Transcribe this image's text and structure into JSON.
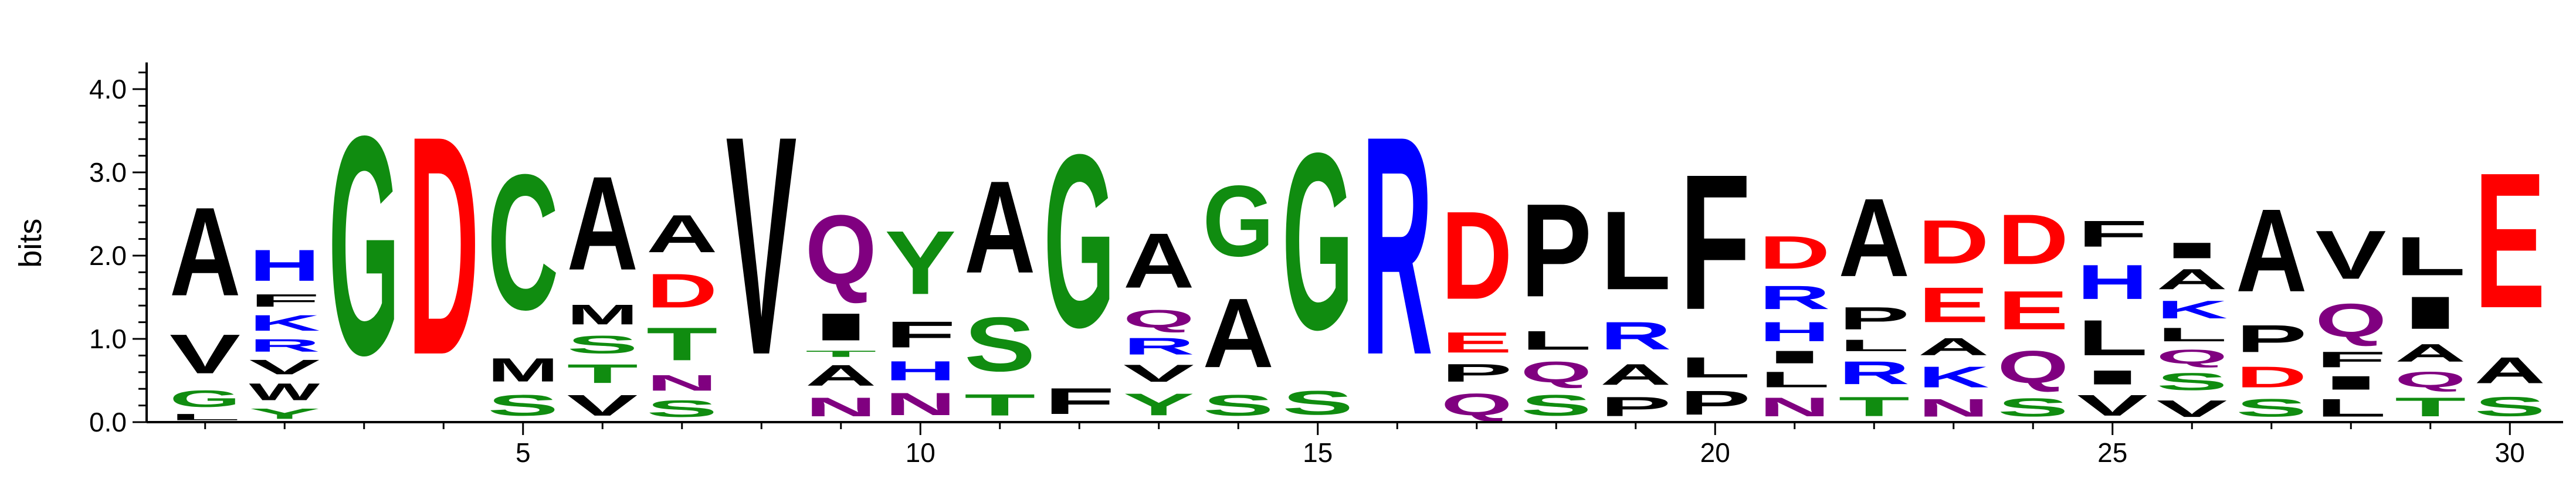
{
  "chart_data": {
    "type": "sequence-logo",
    "ylabel": "bits",
    "ylim": [
      0,
      4.32
    ],
    "xlim": [
      0.5,
      30.5
    ],
    "y_ticks": [
      0.0,
      1.0,
      2.0,
      3.0,
      4.0
    ],
    "y_tick_labels": [
      "0.0",
      "1.0",
      "2.0",
      "3.0",
      "4.0"
    ],
    "x_ticks": [
      5,
      10,
      15,
      20,
      25,
      30
    ],
    "x_tick_labels": [
      "5",
      "10",
      "15",
      "20",
      "25",
      "30"
    ],
    "colors": {
      "G": "#108c10",
      "S": "#108c10",
      "T": "#108c10",
      "Y": "#108c10",
      "C": "#108c10",
      "N": "#800080",
      "Q": "#800080",
      "K": "#0000ff",
      "R": "#0000ff",
      "H": "#0000ff",
      "D": "#ff0000",
      "E": "#ff0000",
      "A": "#000000",
      "V": "#000000",
      "L": "#000000",
      "I": "#000000",
      "P": "#000000",
      "W": "#000000",
      "F": "#000000",
      "M": "#000000"
    },
    "positions": [
      {
        "pos": 1,
        "stack": [
          [
            "L",
            0.12
          ],
          [
            "G",
            0.32
          ],
          [
            "V",
            0.75
          ],
          [
            "A",
            1.7
          ]
        ]
      },
      {
        "pos": 2,
        "stack": [
          [
            "Y",
            0.2
          ],
          [
            "W",
            0.32
          ],
          [
            "V",
            0.28
          ],
          [
            "R",
            0.24
          ],
          [
            "K",
            0.3
          ],
          [
            "F",
            0.24
          ],
          [
            "H",
            0.6
          ]
        ]
      },
      {
        "pos": 3,
        "stack": [
          [
            "G",
            4.2
          ]
        ]
      },
      {
        "pos": 4,
        "stack": [
          [
            "D",
            4.2
          ]
        ]
      },
      {
        "pos": 5,
        "stack": [
          [
            "S",
            0.4
          ],
          [
            "M",
            0.45
          ],
          [
            "C",
            2.6
          ]
        ]
      },
      {
        "pos": 6,
        "stack": [
          [
            "V",
            0.4
          ],
          [
            "T",
            0.36
          ],
          [
            "S",
            0.34
          ],
          [
            "M",
            0.38
          ],
          [
            "A",
            1.8
          ]
        ]
      },
      {
        "pos": 7,
        "stack": [
          [
            "S",
            0.32
          ],
          [
            "N",
            0.3
          ],
          [
            "T",
            0.63
          ],
          [
            "D",
            0.65
          ],
          [
            "A",
            0.72
          ]
        ]
      },
      {
        "pos": 8,
        "stack": [
          [
            "V",
            4.2
          ]
        ]
      },
      {
        "pos": 9,
        "stack": [
          [
            "N",
            0.36
          ],
          [
            "A",
            0.4
          ],
          [
            "T",
            0.12
          ],
          [
            "I",
            0.52
          ],
          [
            "Q",
            1.33
          ]
        ]
      },
      {
        "pos": 10,
        "stack": [
          [
            "N",
            0.43
          ],
          [
            "H",
            0.37
          ],
          [
            "F",
            0.5
          ],
          [
            "Y",
            1.22
          ]
        ]
      },
      {
        "pos": 11,
        "stack": [
          [
            "T",
            0.41
          ],
          [
            "S",
            1.04
          ],
          [
            "A",
            1.77
          ]
        ]
      },
      {
        "pos": 12,
        "stack": [
          [
            "F",
            0.5
          ],
          [
            "G",
            3.32
          ]
        ]
      },
      {
        "pos": 13,
        "stack": [
          [
            "Y",
            0.42
          ],
          [
            "V",
            0.33
          ],
          [
            "R",
            0.32
          ],
          [
            "Q",
            0.34
          ],
          [
            "A",
            1.05
          ]
        ]
      },
      {
        "pos": 14,
        "stack": [
          [
            "S",
            0.4
          ],
          [
            "A",
            1.33
          ],
          [
            "G",
            1.36
          ]
        ]
      },
      {
        "pos": 15,
        "stack": [
          [
            "S",
            0.46
          ],
          [
            "G",
            3.39
          ]
        ]
      },
      {
        "pos": 16,
        "stack": [
          [
            "R",
            4.2
          ]
        ]
      },
      {
        "pos": 17,
        "stack": [
          [
            "Q",
            0.42
          ],
          [
            "P",
            0.34
          ],
          [
            "E",
            0.39
          ],
          [
            "D",
            1.69
          ]
        ]
      },
      {
        "pos": 18,
        "stack": [
          [
            "S",
            0.4
          ],
          [
            "Q",
            0.4
          ],
          [
            "L",
            0.36
          ],
          [
            "P",
            1.79
          ]
        ]
      },
      {
        "pos": 19,
        "stack": [
          [
            "P",
            0.37
          ],
          [
            "A",
            0.4
          ],
          [
            "R",
            0.53
          ],
          [
            "L",
            1.51
          ]
        ]
      },
      {
        "pos": 20,
        "stack": [
          [
            "P",
            0.46
          ],
          [
            "L",
            0.39
          ],
          [
            "F",
            2.6
          ]
        ]
      },
      {
        "pos": 21,
        "stack": [
          [
            "N",
            0.36
          ],
          [
            "L",
            0.3
          ],
          [
            "I",
            0.24
          ],
          [
            "H",
            0.37
          ],
          [
            "R",
            0.45
          ],
          [
            "D",
            0.63
          ]
        ]
      },
      {
        "pos": 22,
        "stack": [
          [
            "T",
            0.37
          ],
          [
            "R",
            0.44
          ],
          [
            "L",
            0.22
          ],
          [
            "P",
            0.43
          ],
          [
            "A",
            1.5
          ]
        ]
      },
      {
        "pos": 23,
        "stack": [
          [
            "N",
            0.34
          ],
          [
            "K",
            0.4
          ],
          [
            "A",
            0.33
          ],
          [
            "E",
            0.67
          ],
          [
            "D",
            0.84
          ]
        ]
      },
      {
        "pos": 24,
        "stack": [
          [
            "S",
            0.35
          ],
          [
            "Q",
            0.62
          ],
          [
            "E",
            0.74
          ],
          [
            "D",
            0.96
          ]
        ]
      },
      {
        "pos": 25,
        "stack": [
          [
            "V",
            0.4
          ],
          [
            "I",
            0.27
          ],
          [
            "L",
            0.68
          ],
          [
            "H",
            0.66
          ],
          [
            "F",
            0.5
          ]
        ]
      },
      {
        "pos": 26,
        "stack": [
          [
            "V",
            0.32
          ],
          [
            "S",
            0.33
          ],
          [
            "Q",
            0.27
          ],
          [
            "L",
            0.26
          ],
          [
            "K",
            0.34
          ],
          [
            "A",
            0.39
          ],
          [
            "I",
            0.3
          ]
        ]
      },
      {
        "pos": 27,
        "stack": [
          [
            "S",
            0.34
          ],
          [
            "D",
            0.4
          ],
          [
            "P",
            0.52
          ],
          [
            "A",
            1.59
          ]
        ]
      },
      {
        "pos": 28,
        "stack": [
          [
            "L",
            0.34
          ],
          [
            "I",
            0.26
          ],
          [
            "F",
            0.3
          ],
          [
            "Q",
            0.64
          ],
          [
            "V",
            0.93
          ]
        ]
      },
      {
        "pos": 29,
        "stack": [
          [
            "T",
            0.36
          ],
          [
            "Q",
            0.3
          ],
          [
            "A",
            0.34
          ],
          [
            "I",
            0.62
          ],
          [
            "L",
            0.74
          ]
        ]
      },
      {
        "pos": 30,
        "stack": [
          [
            "S",
            0.37
          ],
          [
            "A",
            0.5
          ],
          [
            "E",
            2.6
          ]
        ]
      }
    ]
  }
}
